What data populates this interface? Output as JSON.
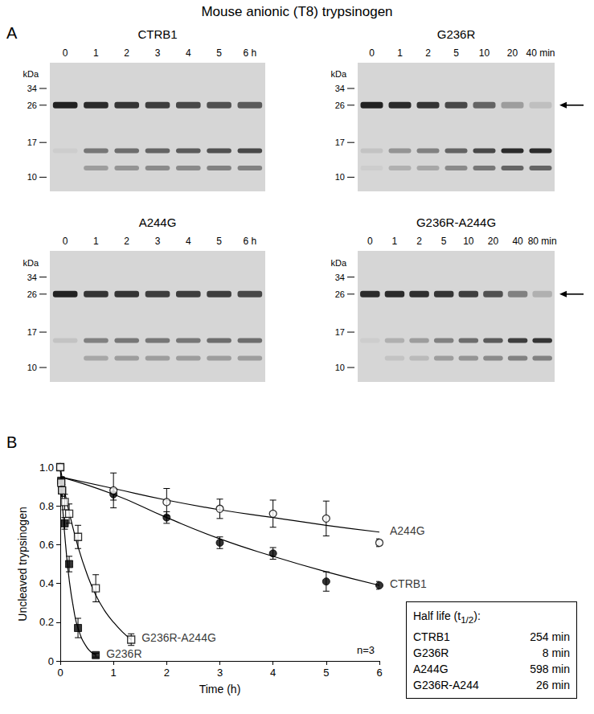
{
  "title": "Mouse anionic (T8) trypsinogen",
  "panel_labels": [
    "A",
    "B"
  ],
  "gels": {
    "marker_title": "kDa",
    "markers": [
      34,
      26,
      17,
      10
    ],
    "panels": [
      {
        "title": "CTRB1",
        "lanes": [
          "0",
          "1",
          "2",
          "3",
          "4",
          "5",
          "6 h"
        ],
        "arrow": false,
        "bands": [
          {
            "kDa": 26,
            "intensity": [
              0.95,
              0.9,
              0.85,
              0.8,
              0.75,
              0.7,
              0.65
            ]
          },
          {
            "kDa": 15,
            "intensity": [
              0.05,
              0.5,
              0.55,
              0.6,
              0.65,
              0.7,
              0.75
            ]
          },
          {
            "kDa": 11.5,
            "intensity": [
              0,
              0.3,
              0.35,
              0.4,
              0.4,
              0.45,
              0.45
            ]
          }
        ]
      },
      {
        "title": "G236R",
        "lanes": [
          "0",
          "1",
          "2",
          "5",
          "10",
          "20",
          "40 min"
        ],
        "arrow": true,
        "bands": [
          {
            "kDa": 26,
            "intensity": [
              0.95,
              0.9,
              0.85,
              0.75,
              0.6,
              0.3,
              0.12
            ]
          },
          {
            "kDa": 15,
            "intensity": [
              0.1,
              0.35,
              0.45,
              0.6,
              0.75,
              0.9,
              0.9
            ]
          },
          {
            "kDa": 11.5,
            "intensity": [
              0.05,
              0.2,
              0.25,
              0.4,
              0.5,
              0.6,
              0.6
            ]
          }
        ]
      },
      {
        "title": "A244G",
        "lanes": [
          "0",
          "1",
          "2",
          "3",
          "4",
          "5",
          "6 h"
        ],
        "arrow": false,
        "bands": [
          {
            "kDa": 26,
            "intensity": [
              0.95,
              0.85,
              0.85,
              0.8,
              0.8,
              0.8,
              0.75
            ]
          },
          {
            "kDa": 15,
            "intensity": [
              0.1,
              0.45,
              0.5,
              0.5,
              0.5,
              0.55,
              0.55
            ]
          },
          {
            "kDa": 11.5,
            "intensity": [
              0,
              0.25,
              0.3,
              0.3,
              0.3,
              0.3,
              0.3
            ]
          }
        ]
      },
      {
        "title": "G236R-A244G",
        "lanes": [
          "0",
          "1",
          "2",
          "5",
          "10",
          "20",
          "40",
          "80 min"
        ],
        "arrow": true,
        "bands": [
          {
            "kDa": 26,
            "intensity": [
              0.9,
              0.9,
              0.88,
              0.85,
              0.8,
              0.7,
              0.45,
              0.2
            ]
          },
          {
            "kDa": 15,
            "intensity": [
              0.05,
              0.2,
              0.3,
              0.45,
              0.55,
              0.65,
              0.8,
              0.85
            ]
          },
          {
            "kDa": 11.5,
            "intensity": [
              0,
              0.1,
              0.15,
              0.3,
              0.35,
              0.4,
              0.45,
              0.45
            ]
          }
        ]
      }
    ]
  },
  "chart_data": {
    "type": "scatter",
    "x_label": "Time (h)",
    "y_label": "Uncleaved trypsinogen",
    "xlim": [
      0,
      6
    ],
    "xticks": [
      0,
      1,
      2,
      3,
      4,
      5,
      6
    ],
    "ylim": [
      0,
      1
    ],
    "yticks": [
      0,
      0.2,
      0.4,
      0.6,
      0.8,
      {
        "value": 1,
        "label": "1.0"
      }
    ],
    "grid": false,
    "annotations": [
      "n=3"
    ],
    "series": [
      {
        "name": "CTRB1",
        "marker": "circle",
        "color": "#000000",
        "x": [
          0,
          1,
          2,
          3,
          4,
          5,
          6
        ],
        "values": [
          1.0,
          0.86,
          0.74,
          0.61,
          0.555,
          0.41,
          0.39
        ],
        "errors": [
          0,
          0.03,
          0.03,
          0.03,
          0.03,
          0.05,
          0.02
        ],
        "fit": {
          "x": [
            0,
            1,
            2,
            3,
            4,
            5,
            6
          ],
          "values": [
            0.95,
            0.86,
            0.74,
            0.63,
            0.54,
            0.46,
            0.39
          ]
        }
      },
      {
        "name": "G236R",
        "marker": "square",
        "color": "#000000",
        "x": [
          0,
          0.017,
          0.033,
          0.083,
          0.167,
          0.333,
          0.667
        ],
        "values": [
          1.0,
          0.93,
          0.88,
          0.71,
          0.5,
          0.17,
          0.03
        ],
        "errors": [
          0,
          0.02,
          0.03,
          0.03,
          0.04,
          0.05,
          0.01
        ],
        "fit": {
          "x": [
            0,
            0.05,
            0.1,
            0.167,
            0.25,
            0.333,
            0.5,
            0.667
          ],
          "values": [
            1.0,
            0.77,
            0.6,
            0.42,
            0.27,
            0.17,
            0.07,
            0.03
          ]
        }
      },
      {
        "name": "A244G",
        "marker": "open_circle",
        "color": "#000000",
        "x": [
          0,
          1,
          2,
          3,
          4,
          5,
          6
        ],
        "values": [
          1.0,
          0.88,
          0.82,
          0.785,
          0.76,
          0.735,
          0.61
        ],
        "errors": [
          0,
          0.09,
          0.07,
          0.05,
          0.07,
          0.09,
          0.02
        ],
        "fit": {
          "x": [
            0,
            1,
            2,
            3,
            4,
            5,
            6
          ],
          "values": [
            0.95,
            0.89,
            0.83,
            0.78,
            0.74,
            0.7,
            0.665
          ]
        }
      },
      {
        "name": "G236R-A244G",
        "marker": "open_square",
        "color": "#000000",
        "x": [
          0,
          0.017,
          0.033,
          0.083,
          0.167,
          0.333,
          0.667,
          1.333
        ],
        "values": [
          1.0,
          0.92,
          0.88,
          0.82,
          0.76,
          0.64,
          0.375,
          0.11
        ],
        "errors": [
          0,
          0.03,
          0.03,
          0.04,
          0.05,
          0.06,
          0.07,
          0.03
        ],
        "fit": {
          "x": [
            0,
            0.1,
            0.2,
            0.333,
            0.5,
            0.667,
            0.833,
            1.0,
            1.167,
            1.333
          ],
          "values": [
            1.0,
            0.85,
            0.73,
            0.59,
            0.45,
            0.34,
            0.26,
            0.2,
            0.15,
            0.11
          ]
        }
      }
    ],
    "half_life": {
      "title": [
        "Half life (t",
        "1/2",
        "):"
      ],
      "rows": [
        {
          "name": "CTRB1",
          "value": 254,
          "unit": "min"
        },
        {
          "name": "G236R",
          "value": 8,
          "unit": "min"
        },
        {
          "name": "A244G",
          "value": 598,
          "unit": "min"
        },
        {
          "name": "G236R-A244",
          "value": 26,
          "unit": "min"
        }
      ]
    }
  }
}
